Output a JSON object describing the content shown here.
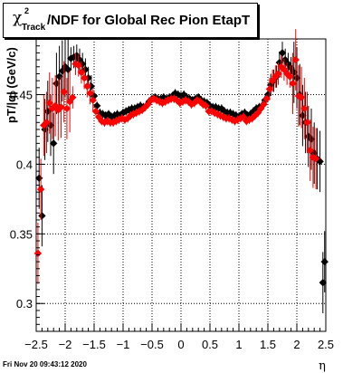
{
  "title": {
    "symbol": "χ",
    "superscript": "2",
    "subscript": "Track",
    "text": "/NDF for Global Rec Pion EtapT"
  },
  "timestamp": "Fri Nov 20 09:43:12 2020",
  "chart_data": {
    "type": "scatter",
    "xlabel": "η",
    "ylabel": "pT/|q| (GeV/c)",
    "xlim": [
      -2.5,
      2.5
    ],
    "ylim": [
      0.28,
      0.49
    ],
    "xticks": [
      "-2.5",
      "-2",
      "-1.5",
      "-1",
      "-0.5",
      "0",
      "0.5",
      "1",
      "1.5",
      "2",
      "2.5"
    ],
    "yticks": [
      "0.3",
      "0.35",
      "0.4",
      "0.45"
    ],
    "grid": true,
    "colors": {
      "series1": "#000000",
      "series2": "#ff0000"
    },
    "series": [
      {
        "x": [
          -2.45,
          -2.4,
          -2.35,
          -2.3,
          -2.25,
          -2.2,
          -2.15,
          -2.1,
          -2.05,
          -2.0,
          -1.95,
          -1.9,
          -1.85,
          -1.8,
          -1.75,
          -1.7,
          -1.65,
          -1.6,
          -1.55,
          -1.5,
          -1.45,
          -1.4,
          -1.35,
          -1.3,
          -1.25,
          -1.2,
          -1.15,
          -1.1,
          -1.05,
          -1.0,
          -0.95,
          -0.9,
          -0.85,
          -0.8,
          -0.75,
          -0.7,
          -0.65,
          -0.6,
          -0.55,
          -0.5,
          -0.45,
          -0.4,
          -0.35,
          -0.3,
          -0.25,
          -0.2,
          -0.15,
          -0.1,
          -0.05,
          0.0,
          0.05,
          0.1,
          0.15,
          0.2,
          0.25,
          0.3,
          0.35,
          0.4,
          0.45,
          0.5,
          0.55,
          0.6,
          0.65,
          0.7,
          0.75,
          0.8,
          0.85,
          0.9,
          0.95,
          1.0,
          1.05,
          1.1,
          1.15,
          1.2,
          1.25,
          1.3,
          1.35,
          1.4,
          1.45,
          1.5,
          1.55,
          1.6,
          1.65,
          1.7,
          1.75,
          1.8,
          1.85,
          1.9,
          1.95,
          2.0,
          2.05,
          2.1,
          2.15,
          2.2,
          2.25,
          2.3,
          2.35,
          2.4,
          2.45,
          2.48
        ],
        "y": [
          0.39,
          0.363,
          0.425,
          0.438,
          0.428,
          0.415,
          0.458,
          0.463,
          0.467,
          0.47,
          0.468,
          0.476,
          0.477,
          0.478,
          0.475,
          0.472,
          0.468,
          0.462,
          0.456,
          0.449,
          0.442,
          0.437,
          0.436,
          0.435,
          0.436,
          0.434,
          0.435,
          0.436,
          0.435,
          0.437,
          0.438,
          0.439,
          0.44,
          0.44,
          0.441,
          0.442,
          0.441,
          0.442,
          0.445,
          0.447,
          0.448,
          0.447,
          0.447,
          0.448,
          0.447,
          0.448,
          0.449,
          0.451,
          0.45,
          0.449,
          0.45,
          0.448,
          0.447,
          0.446,
          0.447,
          0.448,
          0.446,
          0.445,
          0.444,
          0.442,
          0.441,
          0.441,
          0.44,
          0.44,
          0.438,
          0.437,
          0.437,
          0.436,
          0.435,
          0.434,
          0.436,
          0.437,
          0.435,
          0.436,
          0.438,
          0.44,
          0.441,
          0.442,
          0.446,
          0.45,
          0.457,
          0.46,
          0.463,
          0.473,
          0.48,
          0.475,
          0.472,
          0.469,
          0.466,
          0.462,
          0.45,
          0.435,
          0.43,
          0.42,
          0.418,
          0.408,
          0.404,
          0.402,
          0.315,
          0.33
        ]
      },
      {
        "x": [
          -2.47,
          -2.42,
          -2.37,
          -2.32,
          -2.27,
          -2.22,
          -2.17,
          -2.12,
          -2.07,
          -2.02,
          -1.97,
          -1.92,
          -1.87,
          -1.82,
          -1.77,
          -1.72,
          -1.67,
          -1.62,
          -1.57,
          -1.52,
          -1.47,
          -1.42,
          -1.37,
          -1.32,
          -1.27,
          -1.22,
          -1.17,
          -1.12,
          -1.07,
          -1.02,
          -0.97,
          -0.92,
          -0.87,
          -0.82,
          -0.77,
          -0.72,
          -0.67,
          -0.62,
          -0.57,
          -0.52,
          -0.47,
          -0.42,
          -0.37,
          -0.32,
          -0.27,
          -0.22,
          -0.17,
          -0.12,
          -0.07,
          -0.02,
          0.03,
          0.08,
          0.13,
          0.18,
          0.23,
          0.28,
          0.33,
          0.38,
          0.43,
          0.48,
          0.53,
          0.58,
          0.63,
          0.68,
          0.73,
          0.78,
          0.83,
          0.88,
          0.93,
          0.98,
          1.03,
          1.08,
          1.13,
          1.18,
          1.23,
          1.28,
          1.33,
          1.38,
          1.43,
          1.48,
          1.53,
          1.58,
          1.63,
          1.68,
          1.73,
          1.78,
          1.83,
          1.88,
          1.93,
          1.98,
          2.03,
          2.08,
          2.13,
          2.18,
          2.23,
          2.28,
          2.33
        ],
        "y": [
          0.336,
          0.382,
          0.428,
          0.43,
          0.444,
          0.44,
          0.442,
          0.439,
          0.441,
          0.452,
          0.44,
          0.445,
          0.448,
          0.472,
          0.471,
          0.466,
          0.462,
          0.456,
          0.451,
          0.446,
          0.438,
          0.434,
          0.431,
          0.43,
          0.431,
          0.43,
          0.43,
          0.431,
          0.432,
          0.433,
          0.432,
          0.433,
          0.435,
          0.436,
          0.437,
          0.438,
          0.439,
          0.441,
          0.443,
          0.446,
          0.447,
          0.446,
          0.445,
          0.444,
          0.445,
          0.446,
          0.447,
          0.447,
          0.446,
          0.444,
          0.445,
          0.446,
          0.445,
          0.443,
          0.444,
          0.446,
          0.445,
          0.443,
          0.442,
          0.438,
          0.438,
          0.437,
          0.436,
          0.435,
          0.434,
          0.433,
          0.433,
          0.432,
          0.431,
          0.432,
          0.433,
          0.434,
          0.431,
          0.432,
          0.433,
          0.435,
          0.437,
          0.44,
          0.443,
          0.447,
          0.454,
          0.46,
          0.463,
          0.465,
          0.47,
          0.468,
          0.465,
          0.463,
          0.458,
          0.475,
          0.449,
          0.448,
          0.44,
          0.43,
          0.41,
          0.405,
          0.404
        ]
      }
    ]
  }
}
